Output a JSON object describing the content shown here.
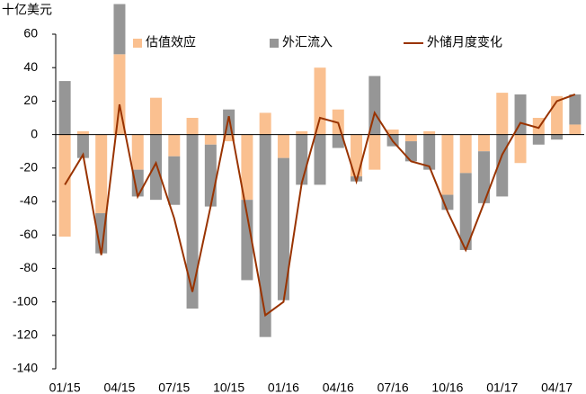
{
  "chart_data": {
    "type": "bar-line",
    "y_axis_label": "十亿美元",
    "categories": [
      "01/15",
      null,
      null,
      "04/15",
      null,
      null,
      "07/15",
      null,
      null,
      "10/15",
      null,
      null,
      "01/16",
      null,
      null,
      "04/16",
      null,
      null,
      "07/16",
      null,
      null,
      "10/16",
      null,
      null,
      "01/17",
      null,
      null,
      "04/17",
      null
    ],
    "series": [
      {
        "name": "估值效应",
        "color": "#fac090",
        "kind": "bar",
        "values": [
          -61,
          2,
          -47,
          48,
          -21,
          22,
          -13,
          10,
          -6,
          -4,
          -39,
          13,
          -14,
          2,
          40,
          15,
          -25,
          -21,
          3,
          -4,
          2,
          -36,
          -23,
          -10,
          25,
          -17,
          10,
          23,
          6
        ]
      },
      {
        "name": "外汇流入",
        "color": "#969696",
        "kind": "bar",
        "values": [
          32,
          -14,
          -24,
          30,
          -16,
          -39,
          -29,
          -104,
          -37,
          15,
          -48,
          -121,
          -85,
          -30,
          -30,
          -8,
          -3,
          35,
          -7,
          -12,
          -21,
          -9,
          -46,
          -31,
          -37,
          24,
          -6,
          -3,
          18
        ]
      },
      {
        "name": "外储月度变化",
        "color": "#993300",
        "kind": "line",
        "values": [
          -30,
          -12,
          -72,
          18,
          -37,
          -17,
          -50,
          -94,
          -43,
          11,
          -48,
          -108,
          -100,
          -29,
          10,
          7,
          -28,
          13,
          -4,
          -16,
          -19,
          -46,
          -69,
          -41,
          -12,
          7,
          4,
          20,
          24
        ]
      }
    ],
    "ylim": [
      -140,
      60
    ],
    "yticks": [
      -140,
      -120,
      -100,
      -80,
      -60,
      -40,
      -20,
      0,
      20,
      40,
      60
    ],
    "grid": false
  }
}
